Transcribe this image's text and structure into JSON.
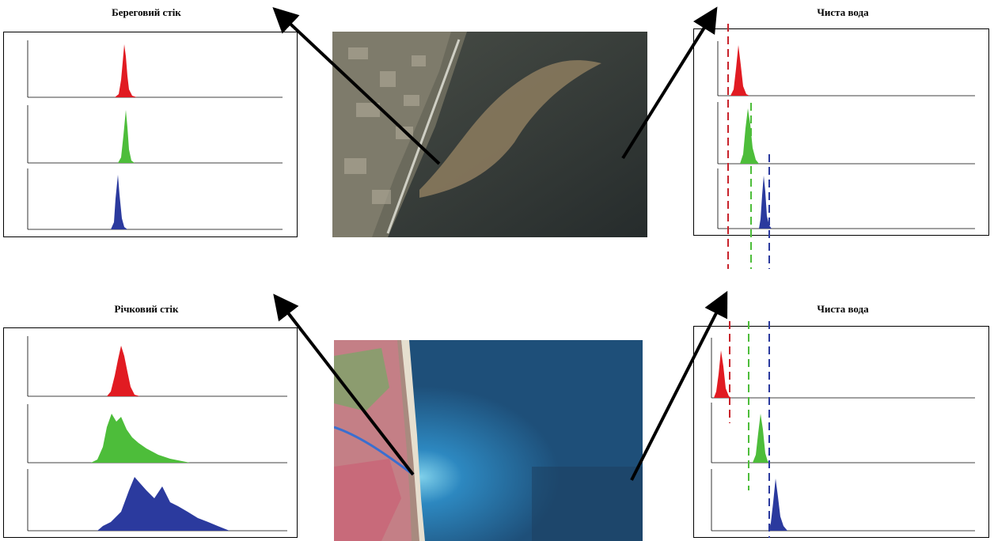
{
  "panels": {
    "top_left": {
      "title": "Береговий стік"
    },
    "top_right": {
      "title": "Чиста вода"
    },
    "bottom_left": {
      "title": "Річковий стік"
    },
    "bottom_right": {
      "title": "Чиста вода"
    }
  },
  "colors": {
    "red": "#e11b22",
    "green": "#4dbd3a",
    "blue": "#2b3a9e"
  }
}
